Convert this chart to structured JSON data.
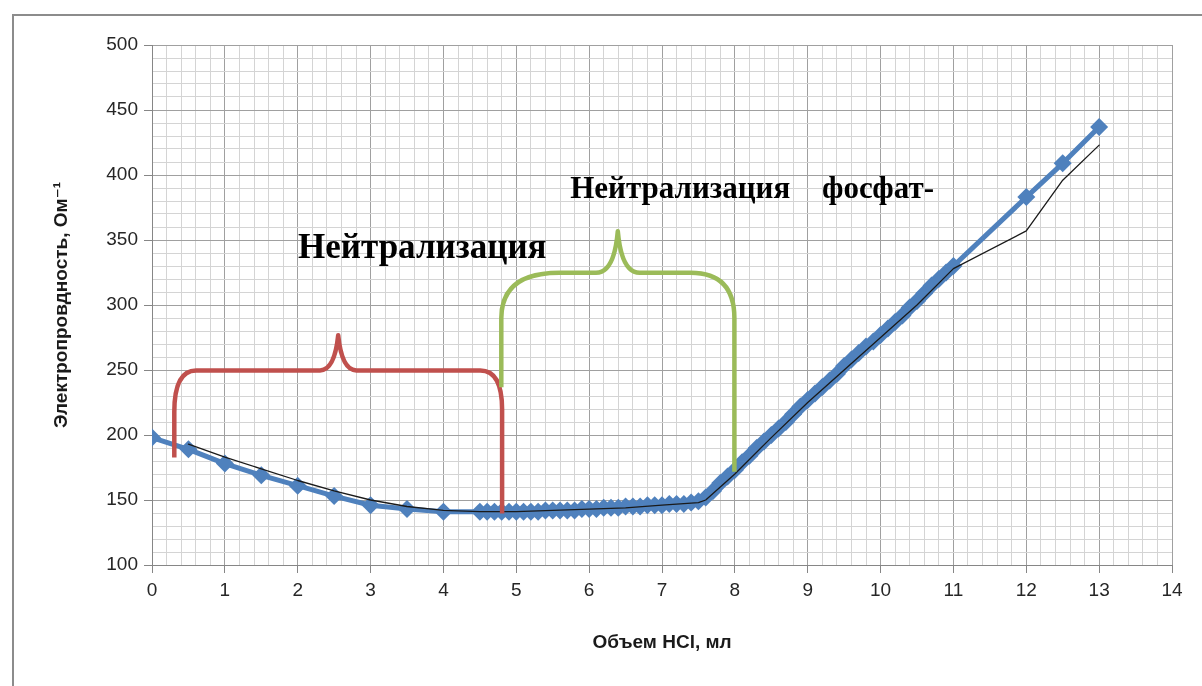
{
  "chart_data": {
    "type": "line",
    "xlabel": "Объем HCl, мл",
    "ylabel": "Электропровдность, Ом⁻¹",
    "annotations": [
      "Нейтрализация",
      "Нейтрализация фосфат-"
    ],
    "xlim": [
      0,
      14
    ],
    "xticks": [
      0,
      {
        "value": 0.2,
        "label": null
      },
      {
        "value": 0.4,
        "label": null
      },
      {
        "value": 0.6,
        "label": null
      },
      {
        "value": 0.8,
        "label": null
      },
      1,
      {
        "value": 1.2,
        "label": null
      },
      {
        "value": 1.4,
        "label": null
      },
      {
        "value": 1.6,
        "label": null
      },
      {
        "value": 1.8,
        "label": null
      },
      2,
      {
        "value": 2.2,
        "label": null
      },
      {
        "value": 2.4,
        "label": null
      },
      {
        "value": 2.6,
        "label": null
      },
      {
        "value": 2.8,
        "label": null
      },
      3,
      {
        "value": 3.2,
        "label": null
      },
      {
        "value": 3.4,
        "label": null
      },
      {
        "value": 3.6,
        "label": null
      },
      {
        "value": 3.8,
        "label": null
      },
      4,
      {
        "value": 4.2,
        "label": null
      },
      {
        "value": 4.4,
        "label": null
      },
      {
        "value": 4.6,
        "label": null
      },
      {
        "value": 4.8,
        "label": null
      },
      5,
      {
        "value": 5.2,
        "label": null
      },
      {
        "value": 5.4,
        "label": null
      },
      {
        "value": 5.6,
        "label": null
      },
      {
        "value": 5.8,
        "label": null
      },
      6,
      {
        "value": 6.2,
        "label": null
      },
      {
        "value": 6.4,
        "label": null
      },
      {
        "value": 6.6,
        "label": null
      },
      {
        "value": 6.8,
        "label": null
      },
      7,
      {
        "value": 7.2,
        "label": null
      },
      {
        "value": 7.4,
        "label": null
      },
      {
        "value": 7.6,
        "label": null
      },
      {
        "value": 7.8,
        "label": null
      },
      8,
      {
        "value": 8.2,
        "label": null
      },
      {
        "value": 8.4,
        "label": null
      },
      {
        "value": 8.6,
        "label": null
      },
      {
        "value": 8.8,
        "label": null
      },
      9,
      {
        "value": 9.2,
        "label": null
      },
      {
        "value": 9.4,
        "label": null
      },
      {
        "value": 9.6,
        "label": null
      },
      {
        "value": 9.8,
        "label": null
      },
      10,
      {
        "value": 10.2,
        "label": null
      },
      {
        "value": 10.4,
        "label": null
      },
      {
        "value": 10.6,
        "label": null
      },
      {
        "value": 10.8,
        "label": null
      },
      11,
      {
        "value": 11.2,
        "label": null
      },
      {
        "value": 11.4,
        "label": null
      },
      {
        "value": 11.6,
        "label": null
      },
      {
        "value": 11.8,
        "label": null
      },
      12,
      {
        "value": 12.2,
        "label": null
      },
      {
        "value": 12.4,
        "label": null
      },
      {
        "value": 12.6,
        "label": null
      },
      {
        "value": 12.8,
        "label": null
      },
      13,
      {
        "value": 13.2,
        "label": null
      },
      {
        "value": 13.4,
        "label": null
      },
      {
        "value": 13.6,
        "label": null
      },
      {
        "value": 13.8,
        "label": null
      },
      14
    ],
    "ylim": [
      100,
      500
    ],
    "yticks": [
      100,
      {
        "value": 110,
        "label": null
      },
      {
        "value": 120,
        "label": null
      },
      {
        "value": 130,
        "label": null
      },
      {
        "value": 140,
        "label": null
      },
      150,
      {
        "value": 160,
        "label": null
      },
      {
        "value": 170,
        "label": null
      },
      {
        "value": 180,
        "label": null
      },
      {
        "value": 190,
        "label": null
      },
      200,
      {
        "value": 210,
        "label": null
      },
      {
        "value": 220,
        "label": null
      },
      {
        "value": 230,
        "label": null
      },
      {
        "value": 240,
        "label": null
      },
      250,
      {
        "value": 260,
        "label": null
      },
      {
        "value": 270,
        "label": null
      },
      {
        "value": 280,
        "label": null
      },
      {
        "value": 290,
        "label": null
      },
      300,
      {
        "value": 310,
        "label": null
      },
      {
        "value": 320,
        "label": null
      },
      {
        "value": 330,
        "label": null
      },
      {
        "value": 340,
        "label": null
      },
      350,
      {
        "value": 360,
        "label": null
      },
      {
        "value": 370,
        "label": null
      },
      {
        "value": 380,
        "label": null
      },
      {
        "value": 390,
        "label": null
      },
      400,
      {
        "value": 410,
        "label": null
      },
      {
        "value": 420,
        "label": null
      },
      {
        "value": 430,
        "label": null
      },
      {
        "value": 440,
        "label": null
      },
      450,
      {
        "value": 460,
        "label": null
      },
      {
        "value": 470,
        "label": null
      },
      {
        "value": 480,
        "label": null
      },
      {
        "value": 490,
        "label": null
      },
      500
    ],
    "grid": true,
    "series": [
      {
        "color": "#4f81bd",
        "marker": "diamond",
        "x": [
          0,
          0.5,
          1,
          1.5,
          2,
          2.5,
          3,
          3.5,
          4,
          4.5,
          4.6,
          4.7,
          4.8,
          4.9,
          5,
          5.1,
          5.2,
          5.3,
          5.4,
          5.5,
          5.6,
          5.7,
          5.8,
          5.9,
          6,
          6.1,
          6.2,
          6.3,
          6.4,
          6.5,
          6.6,
          6.7,
          6.8,
          6.9,
          7,
          7.1,
          7.2,
          7.3,
          7.4,
          7.5,
          7.6,
          7.7,
          7.8,
          7.9,
          8,
          8.1,
          8.2,
          8.3,
          8.4,
          8.5,
          8.6,
          8.7,
          8.8,
          8.9,
          9,
          9.1,
          9.2,
          9.3,
          9.4,
          9.5,
          9.6,
          9.7,
          9.8,
          9.9,
          10,
          10.1,
          10.2,
          10.3,
          10.4,
          10.5,
          10.6,
          10.7,
          10.8,
          10.9,
          11,
          12,
          12.5,
          13
        ],
        "values": [
          198,
          189,
          178,
          169,
          161,
          153,
          146,
          143,
          141,
          141,
          141,
          141,
          141,
          141,
          141,
          141,
          141,
          141,
          142,
          142,
          142,
          142,
          142,
          143,
          143,
          143,
          144,
          144,
          144,
          145,
          145,
          145,
          146,
          146,
          146,
          147,
          147,
          147,
          148,
          149,
          152,
          157,
          163,
          168,
          173,
          179,
          184,
          190,
          195,
          200,
          205,
          210,
          216,
          222,
          227,
          232,
          237,
          242,
          247,
          253,
          258,
          263,
          268,
          272,
          277,
          282,
          287,
          292,
          298,
          303,
          309,
          315,
          320,
          325,
          330,
          383,
          409,
          437
        ]
      },
      {
        "color": "#1a1a1a",
        "marker": "none",
        "x": [
          0.5,
          1,
          1.5,
          2,
          2.5,
          3,
          3.5,
          4,
          4.5,
          5,
          5.5,
          6,
          6.5,
          7,
          7.5,
          7.6,
          7.8,
          8,
          8.5,
          9,
          9.5,
          10,
          10.5,
          11,
          12,
          12.5,
          13
        ],
        "values": [
          193,
          183,
          174,
          165,
          157,
          150,
          145,
          142,
          141,
          141,
          142,
          143,
          144,
          146,
          148,
          150,
          160,
          170,
          198,
          225,
          250,
          275,
          300,
          328,
          357,
          396,
          423
        ]
      }
    ]
  }
}
